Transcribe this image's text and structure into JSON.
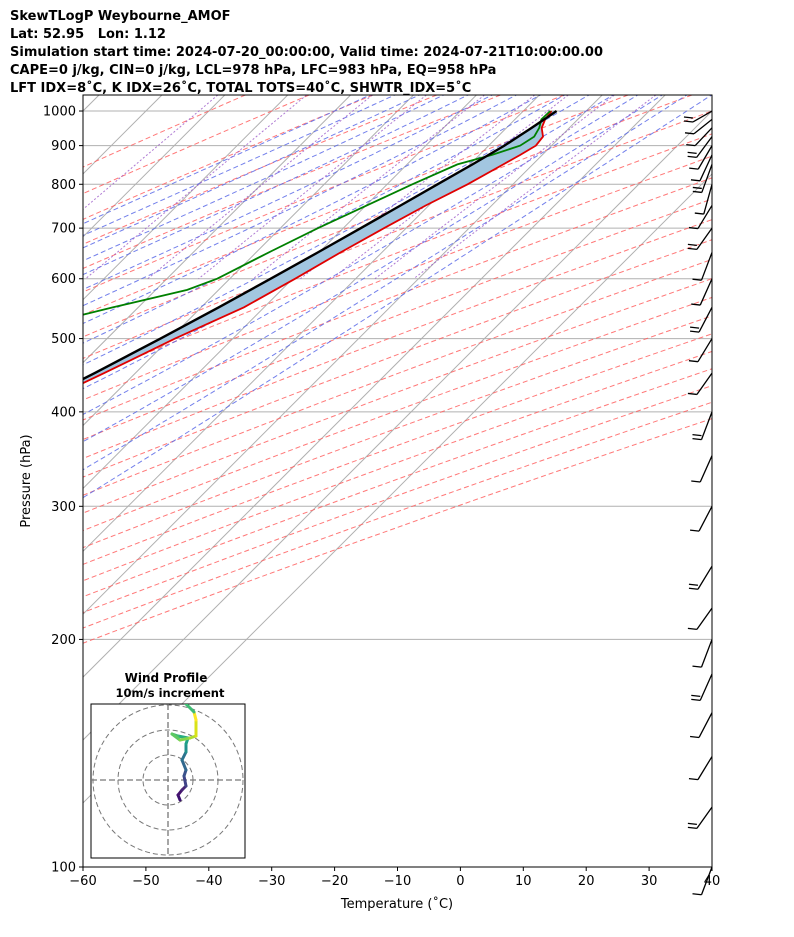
{
  "header": {
    "line1": "SkewTLogP Weybourne_AMOF",
    "line2": "Lat: 52.95   Lon: 1.12",
    "line3": "Simulation start time: 2024-07-20_00:00:00, Valid time: 2024-07-21T10:00:00.00",
    "line4": "CAPE=0 j/kg, CIN=0 j/kg, LCL=978 hPa, LFC=983 hPa, EQ=958 hPa",
    "line5": "LFT IDX=8˚C, K IDX=26˚C, TOTAL TOTS=40˚C, SHWTR_IDX=5˚C"
  },
  "chart_data": {
    "type": "line",
    "subtype": "skew-t log-p",
    "xlabel": "Temperature (˚C)",
    "ylabel": "Pressure (hPa)",
    "xlim": [
      -60,
      40
    ],
    "ylim": [
      1050,
      100
    ],
    "y_scale": "log",
    "x_ticks": [
      "−60",
      "−50",
      "−40",
      "−30",
      "−20",
      "−10",
      "0",
      "10",
      "20",
      "30",
      "40"
    ],
    "y_ticks": [
      1000,
      900,
      800,
      700,
      600,
      500,
      400,
      300,
      200,
      100
    ],
    "grid": true,
    "colors": {
      "temperature": "#e00000",
      "dewpoint": "#008000",
      "parcel": "#000000",
      "shade": "#a2c6e0",
      "isotherm": "#b0b0b0",
      "dry_adiabat": "#ff6060",
      "moist_adiabat": "#5a6ae8",
      "mixing_ratio": "#9b59c8"
    },
    "series": [
      {
        "key": "temperature",
        "pressure": [
          1000,
          975,
          950,
          925,
          900,
          875,
          850,
          800,
          750,
          700,
          650,
          600,
          550,
          500,
          450,
          400,
          350,
          300,
          250,
          220,
          200,
          180,
          170,
          160,
          150,
          140,
          130,
          120,
          110,
          100
        ],
        "values": [
          14.5,
          14.8,
          15.6,
          17.2,
          17.5,
          16.5,
          15.3,
          12.8,
          9.5,
          6.5,
          3.4,
          0.4,
          -3.2,
          -9.2,
          -15.0,
          -21.8,
          -29.8,
          -37.0,
          -46.0,
          -53.0,
          -55.0,
          -55.0,
          -55.8,
          -57.5,
          -59.5,
          -61.0,
          -62.5,
          -64.0,
          -66.5,
          -69.5
        ]
      },
      {
        "key": "dewpoint",
        "pressure": [
          1000,
          975,
          950,
          925,
          900,
          875,
          850,
          800,
          700,
          650,
          600,
          580,
          550,
          520,
          500,
          470,
          450,
          420,
          400,
          380,
          350,
          310,
          300,
          280,
          250,
          220,
          200,
          180,
          170,
          160,
          100
        ],
        "values": [
          14.3,
          14.2,
          15.2,
          15.8,
          15.0,
          12.0,
          8.0,
          4.0,
          -4.0,
          -8.0,
          -12.0,
          -15.0,
          -24.0,
          -33.0,
          -36.0,
          -34.0,
          -40.0,
          -43.0,
          -44.5,
          -45.0,
          -46.0,
          -43.5,
          -46.0,
          -48.5,
          -52.0,
          -56.0,
          -59.5,
          -64.0,
          -67.5,
          -70.5,
          -82.0
        ]
      },
      {
        "key": "parcel",
        "pressure": [
          1000,
          950,
          900,
          850,
          800,
          750,
          700,
          650,
          600,
          550,
          500,
          450,
          400,
          350,
          300,
          250,
          200,
          150,
          100
        ],
        "values": [
          15.3,
          14.0,
          12.5,
          10.4,
          8.0,
          5.5,
          2.8,
          -0.2,
          -3.5,
          -7.2,
          -11.5,
          -16.5,
          -22.5,
          -29.5,
          -38.0,
          -48.5,
          -61.5,
          -78.0,
          -100.0
        ]
      }
    ],
    "wind_profile_inset": {
      "title": "Wind Profile",
      "subtitle": "10m/s increment"
    }
  }
}
